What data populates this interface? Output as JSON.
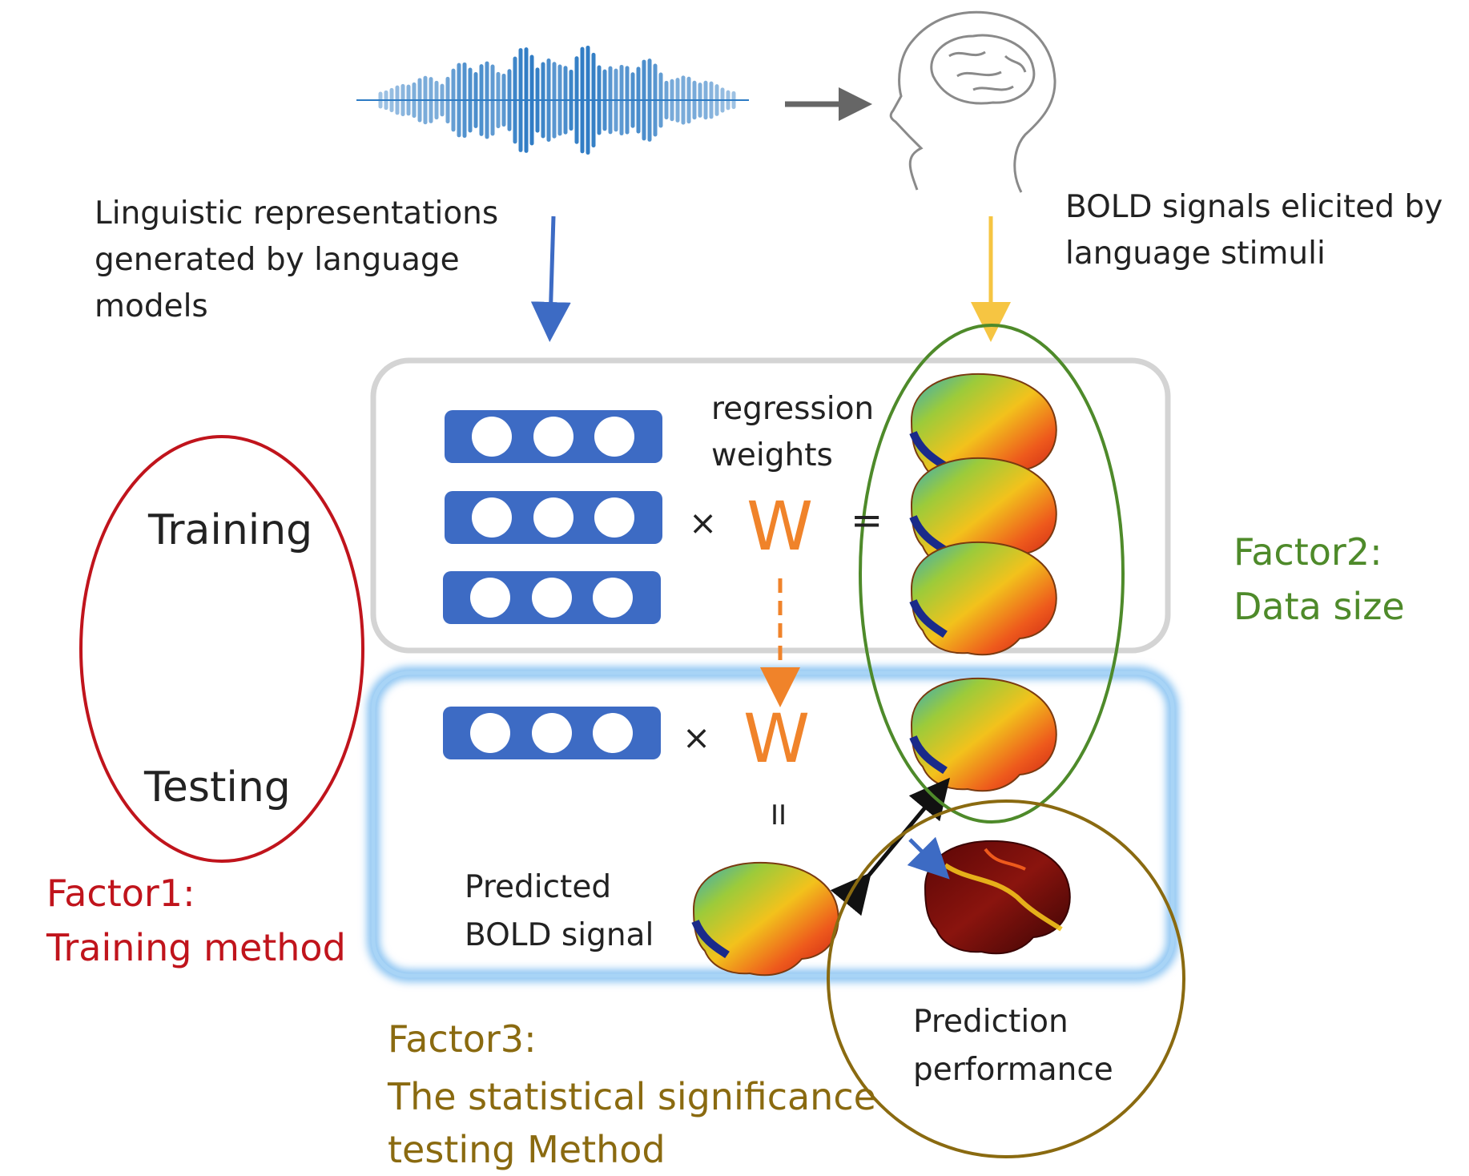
{
  "labels": {
    "linguistic": "Linguistic representations\ngenerated by language\nmodels",
    "bold_stimuli": "BOLD signals elicited by\nlanguage stimuli",
    "regression": "regression\nweights",
    "training": "Training",
    "testing": "Testing",
    "factor1_title": "Factor1:",
    "factor1_desc": "Training method",
    "factor2_title": "Factor2:",
    "factor2_desc": "Data size",
    "factor3_title": "Factor3:",
    "factor3_desc": "The statistical significance\ntesting Method",
    "predicted": "Predicted\nBOLD signal",
    "performance": "Prediction\nperformance",
    "times": "×",
    "equals": "=",
    "equals_vertical": "II",
    "weight_symbol": "W"
  },
  "colors": {
    "factor1": "#c0141c",
    "factor2": "#4e8a2a",
    "factor3": "#8a6a10",
    "vector_box": "#3d6bc4",
    "weight": "#f0832a",
    "blue_arrow": "#3d6bc4",
    "yellow_arrow": "#f6c542",
    "gray_arrow": "#666666",
    "testing_box": "#8cc4f2"
  },
  "icons": [
    "sound-wave-icon",
    "head-brain-icon",
    "brain-map-icon"
  ]
}
